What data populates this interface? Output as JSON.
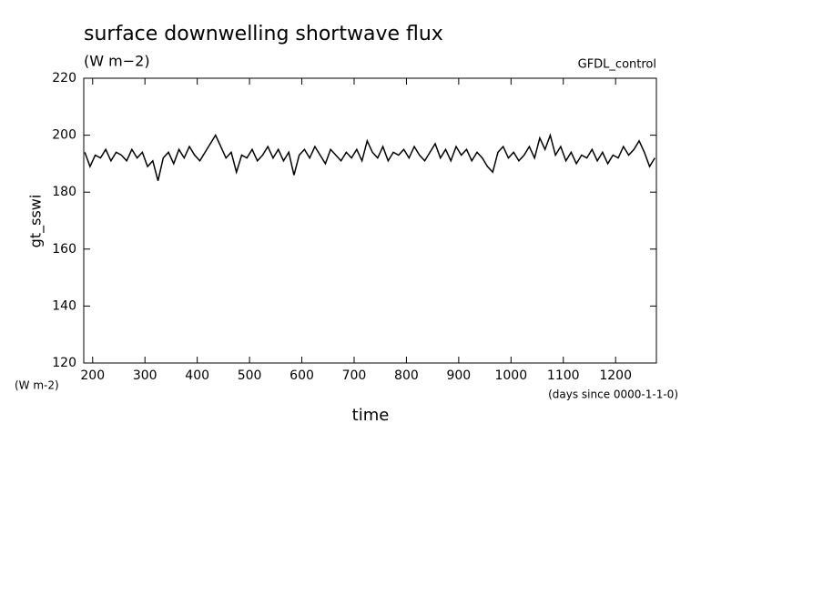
{
  "chart_data": {
    "type": "line",
    "title": "surface downwelling shortwave flux",
    "subtitle": "(W m−2)",
    "y_label": "gt_sswi",
    "y_units": "(W m-2)",
    "x_label": "time",
    "x_units": "(days since 0000-1-1-0)",
    "x": [
      185,
      195,
      205,
      215,
      225,
      235,
      245,
      255,
      265,
      275,
      285,
      295,
      305,
      315,
      325,
      335,
      345,
      355,
      365,
      375,
      385,
      395,
      405,
      415,
      425,
      435,
      445,
      455,
      465,
      475,
      485,
      495,
      505,
      515,
      525,
      535,
      545,
      555,
      565,
      575,
      585,
      595,
      605,
      615,
      625,
      635,
      645,
      655,
      665,
      675,
      685,
      695,
      705,
      715,
      725,
      735,
      745,
      755,
      765,
      775,
      785,
      795,
      805,
      815,
      825,
      835,
      845,
      855,
      865,
      875,
      885,
      895,
      905,
      915,
      925,
      935,
      945,
      955,
      965,
      975,
      985,
      995,
      1005,
      1015,
      1025,
      1035,
      1045,
      1055,
      1065,
      1075,
      1085,
      1095,
      1105,
      1115,
      1125,
      1135,
      1145,
      1155,
      1165,
      1175,
      1185,
      1195,
      1205,
      1215,
      1225,
      1235,
      1245,
      1255,
      1265,
      1275
    ],
    "series": [
      {
        "name": "GFDL_control",
        "color": "#000000",
        "values": [
          194,
          189,
          193,
          192,
          195,
          191,
          194,
          193,
          191,
          195,
          192,
          194,
          189,
          191,
          184,
          192,
          194,
          190,
          195,
          192,
          196,
          193,
          191,
          194,
          197,
          200,
          196,
          192,
          194,
          187,
          193,
          192,
          195,
          191,
          193,
          196,
          192,
          195,
          191,
          194,
          186,
          193,
          195,
          192,
          196,
          193,
          190,
          195,
          193,
          191,
          194,
          192,
          195,
          191,
          198,
          194,
          192,
          196,
          191,
          194,
          193,
          195,
          192,
          196,
          193,
          191,
          194,
          197,
          192,
          195,
          191,
          196,
          193,
          195,
          191,
          194,
          192,
          189,
          187,
          194,
          196,
          192,
          194,
          191,
          193,
          196,
          192,
          199,
          195,
          200,
          193,
          196,
          191,
          194,
          190,
          193,
          192,
          195,
          191,
          194,
          190,
          193,
          192,
          196,
          193,
          195,
          198,
          194,
          189,
          192
        ]
      }
    ],
    "xlim": [
      183,
      1278
    ],
    "ylim": [
      120,
      220
    ],
    "xticks": [
      200,
      300,
      400,
      500,
      600,
      700,
      800,
      900,
      1000,
      1100,
      1200
    ],
    "yticks": [
      120,
      140,
      160,
      180,
      200,
      220
    ]
  }
}
